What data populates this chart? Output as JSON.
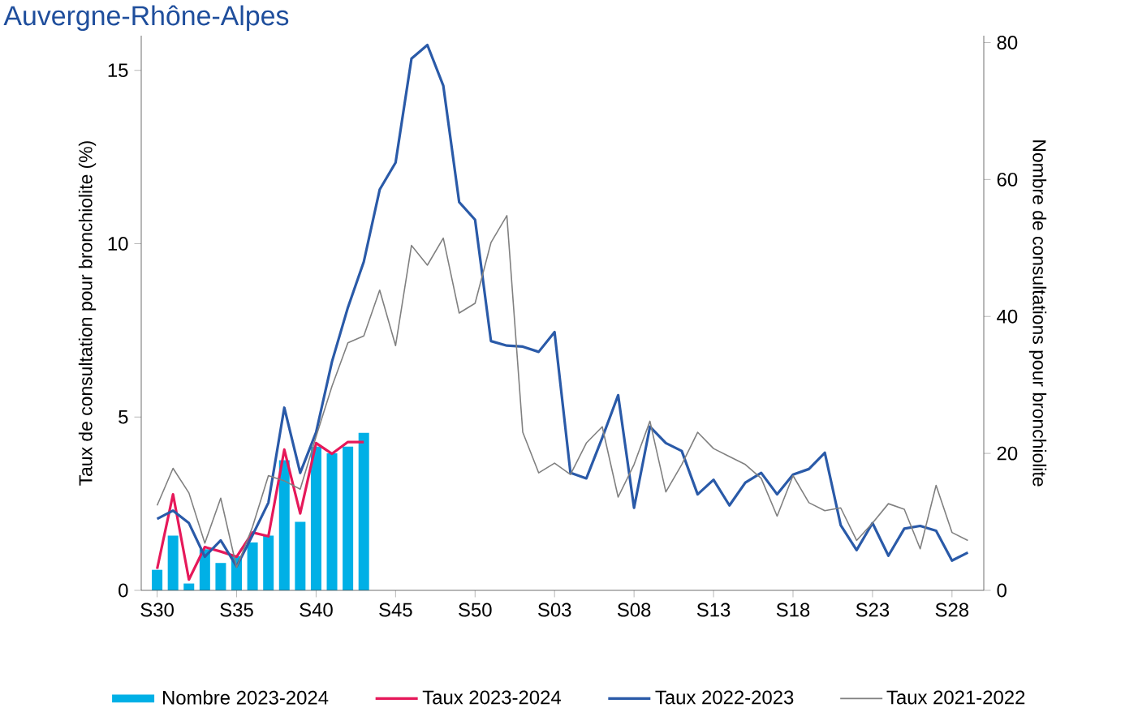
{
  "chart_data": {
    "type": "line",
    "title": "Auvergne-Rhône-Alpes",
    "ylabel": "Taux de consultation pour bronchiolite (%)",
    "y2label": "Nombre de consultations pour bronchiolite",
    "categories": [
      "S30",
      null,
      null,
      null,
      null,
      "S35",
      null,
      null,
      null,
      null,
      "S40",
      null,
      null,
      null,
      null,
      "S45",
      null,
      null,
      null,
      null,
      "S50",
      null,
      null,
      null,
      null,
      "S03",
      null,
      null,
      null,
      null,
      "S08",
      null,
      null,
      null,
      null,
      "S13",
      null,
      null,
      null,
      null,
      "S18",
      null,
      null,
      null,
      null,
      "S23",
      null,
      null,
      null,
      null,
      "S28",
      null
    ],
    "ylim": [
      0,
      16
    ],
    "yticks": [
      0,
      5,
      10,
      15
    ],
    "y2lim": [
      0,
      81
    ],
    "y2ticks": [
      0,
      20,
      40,
      60,
      80
    ],
    "legend": "bottom",
    "series": [
      {
        "name": "Nombre 2023-2024",
        "type": "bar",
        "axis": "y2",
        "color": "#00b0e6",
        "values": [
          3,
          8,
          1,
          6,
          4,
          5,
          7,
          8,
          19,
          10,
          21,
          20,
          21,
          23,
          null,
          null,
          null,
          null,
          null,
          null,
          null,
          null,
          null,
          null,
          null,
          null,
          null,
          null,
          null,
          null,
          null,
          null,
          null,
          null,
          null,
          null,
          null,
          null,
          null,
          null,
          null,
          null,
          null,
          null,
          null,
          null,
          null,
          null,
          null,
          null,
          null,
          null
        ]
      },
      {
        "name": "Taux 2023-2024",
        "color": "#e6195a",
        "values": [
          0.62,
          2.77,
          0.31,
          1.25,
          1.12,
          0.97,
          1.67,
          1.56,
          4.06,
          2.22,
          4.25,
          3.94,
          4.28,
          4.28,
          null,
          null,
          null,
          null,
          null,
          null,
          null,
          null,
          null,
          null,
          null,
          null,
          null,
          null,
          null,
          null,
          null,
          null,
          null,
          null,
          null,
          null,
          null,
          null,
          null,
          null,
          null,
          null,
          null,
          null,
          null,
          null,
          null,
          null,
          null,
          null,
          null,
          null
        ]
      },
      {
        "name": "Taux 2022-2023",
        "color": "#2a5aa8",
        "values": [
          2.06,
          2.3,
          1.94,
          0.97,
          1.44,
          0.69,
          1.59,
          2.53,
          5.27,
          3.39,
          4.56,
          6.6,
          8.16,
          9.48,
          11.56,
          12.34,
          15.34,
          15.73,
          14.56,
          11.2,
          10.69,
          7.19,
          7.06,
          7.03,
          6.88,
          7.45,
          3.39,
          3.23,
          4.4,
          5.63,
          2.38,
          4.72,
          4.25,
          4.02,
          2.77,
          3.19,
          2.45,
          3.11,
          3.39,
          2.77,
          3.34,
          3.5,
          3.97,
          1.88,
          1.16,
          1.94,
          1.0,
          1.78,
          1.86,
          1.72,
          0.86,
          1.09
        ]
      },
      {
        "name": "Taux 2021-2022",
        "color": "#808080",
        "values": [
          2.45,
          3.52,
          2.81,
          1.36,
          2.66,
          0.66,
          1.83,
          3.31,
          3.16,
          2.92,
          4.44,
          5.89,
          7.14,
          7.34,
          8.66,
          7.06,
          9.95,
          9.38,
          10.16,
          8.0,
          8.28,
          10.03,
          10.81,
          4.56,
          3.39,
          3.67,
          3.34,
          4.25,
          4.72,
          2.69,
          3.63,
          4.88,
          2.84,
          3.63,
          4.56,
          4.09,
          3.86,
          3.63,
          3.23,
          2.14,
          3.31,
          2.53,
          2.3,
          2.38,
          1.44,
          1.94,
          2.5,
          2.34,
          1.2,
          3.03,
          1.67,
          1.44
        ]
      }
    ]
  }
}
